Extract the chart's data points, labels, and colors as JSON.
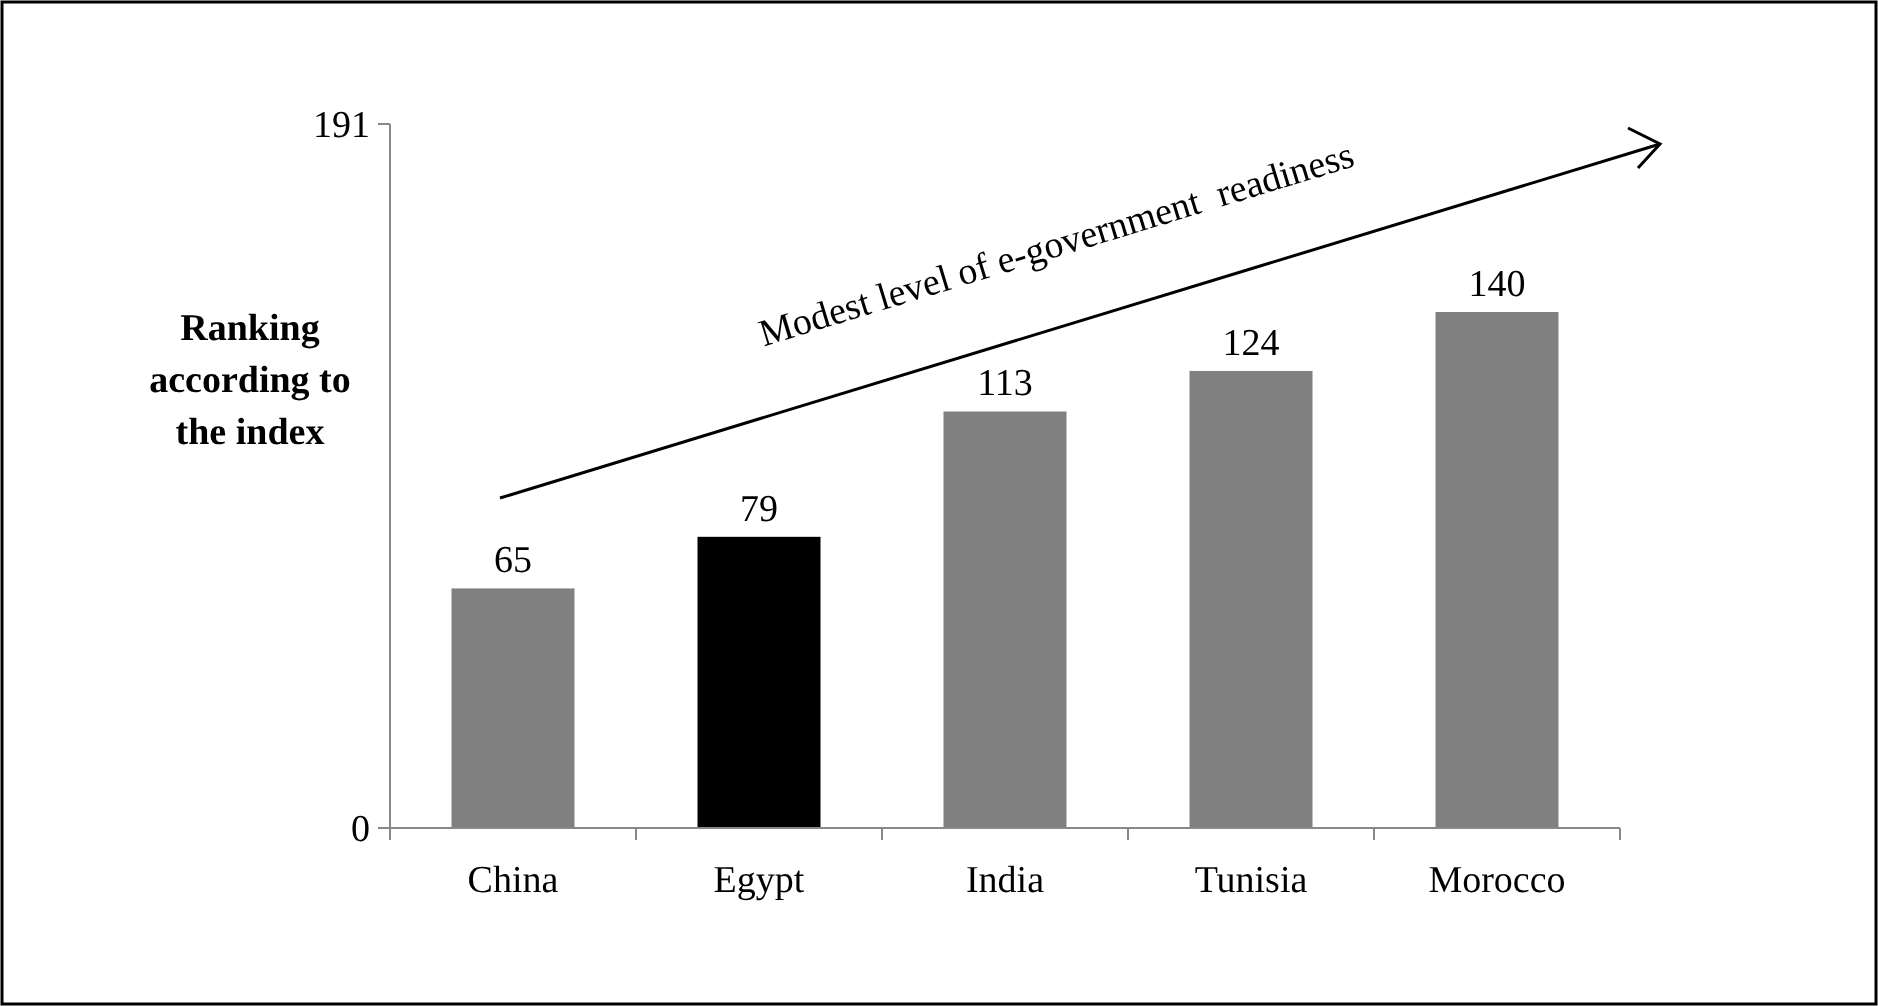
{
  "chart_data": {
    "type": "bar",
    "ylabel": "Ranking according to the index",
    "categories": [
      "China",
      "Egypt",
      "India",
      "Tunisia",
      "Morocco"
    ],
    "values": [
      65,
      79,
      113,
      124,
      140
    ],
    "colors": [
      "#808080",
      "#000000",
      "#808080",
      "#808080",
      "#808080"
    ],
    "ylim": [
      0,
      191
    ],
    "yticks": [
      0,
      191
    ],
    "grid": false,
    "data_labels": true,
    "annotations": [
      "Modest level of e-government  readiness"
    ]
  }
}
